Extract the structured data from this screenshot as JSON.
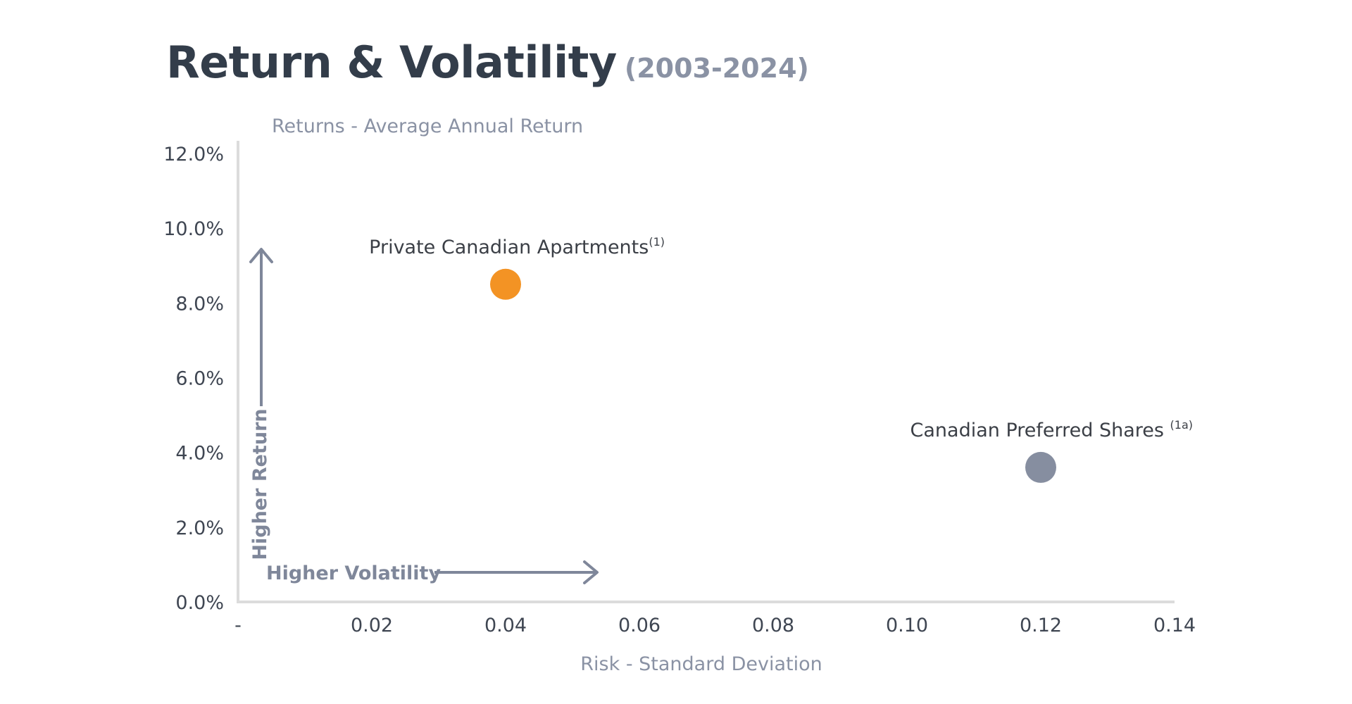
{
  "header": {
    "title": "Return & Volatility",
    "subtitle": "(2003-2024)"
  },
  "chart_data": {
    "type": "scatter",
    "ylabel": "Returns - Average Annual Return",
    "xlabel": "Risk - Standard Deviation",
    "x_ticks": [
      "-",
      "0.02",
      "0.04",
      "0.06",
      "0.08",
      "0.10",
      "0.12",
      "0.14"
    ],
    "y_ticks": [
      "0.0%",
      "2.0%",
      "4.0%",
      "6.0%",
      "8.0%",
      "10.0%",
      "12.0%"
    ],
    "xlim": [
      0,
      0.14
    ],
    "ylim": [
      0,
      12
    ],
    "grid": false,
    "points": [
      {
        "label": "Private Canadian Apartments",
        "superscript": "(1)",
        "x": 0.04,
        "y": 8.5,
        "color": "#f39324"
      },
      {
        "label": "Canadian Preferred Shares ",
        "superscript": "(1a)",
        "x": 0.12,
        "y": 3.6,
        "color": "#868ea0"
      }
    ],
    "annotations": {
      "y_arrow_label": "Higher Return",
      "x_arrow_label": "Higher Volatility"
    }
  },
  "colors": {
    "title": "#333d4a",
    "muted": "#8a92a4",
    "axis": "#dcdcdc",
    "arrow": "#7f879a",
    "tick": "#3f4652",
    "point_label": "#3b3f46"
  }
}
